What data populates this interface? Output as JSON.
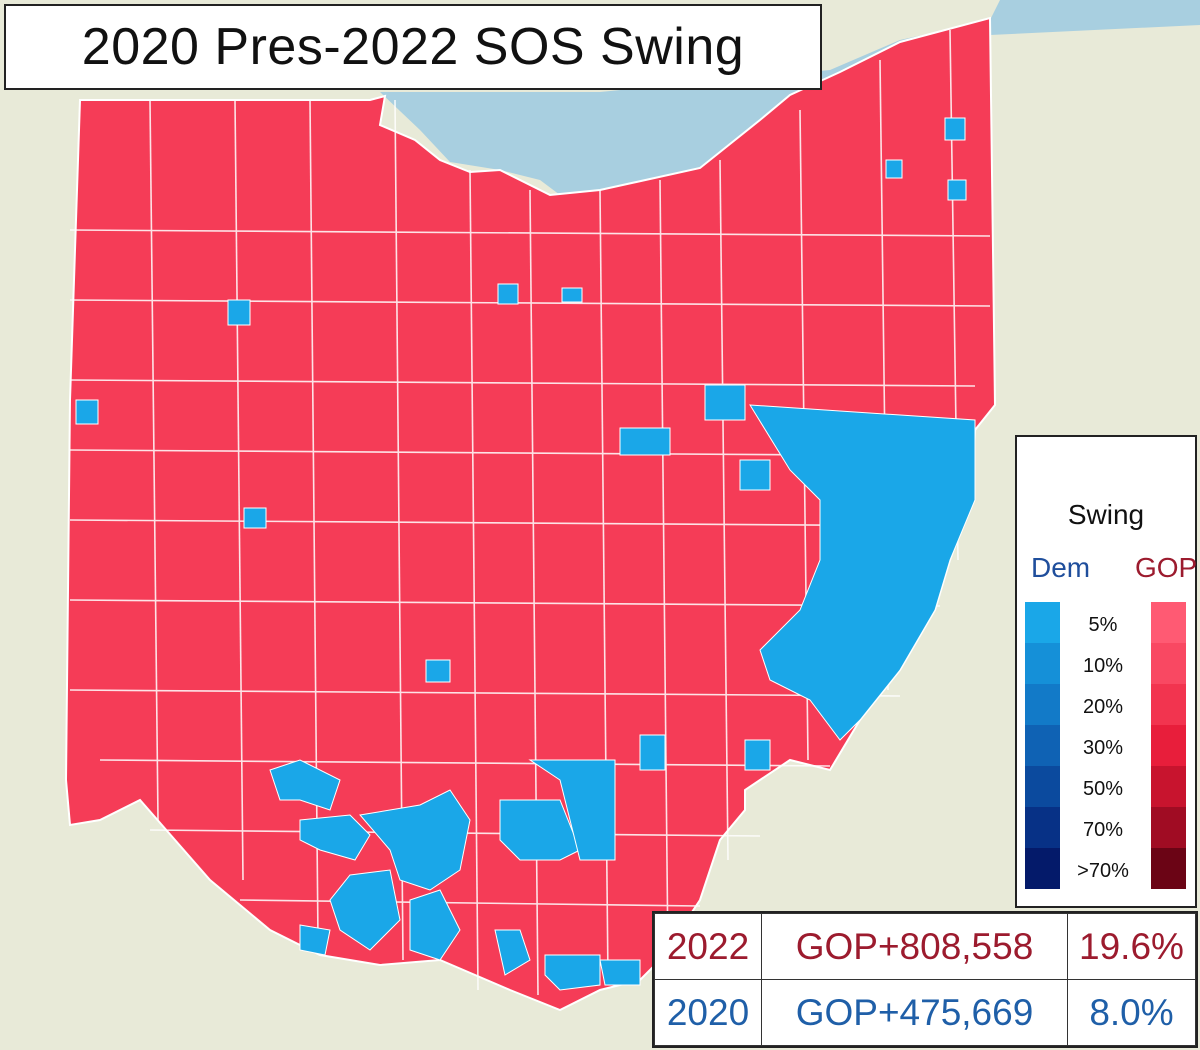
{
  "title": "2020 Pres-2022 SOS Swing",
  "legend": {
    "heading": "Swing",
    "dem_label": "Dem",
    "gop_label": "GOP",
    "ticks": [
      "5%",
      "10%",
      "20%",
      "30%",
      "50%",
      "70%",
      ">70%"
    ],
    "dem_colors": [
      "#1aa7e8",
      "#1590d8",
      "#127ac8",
      "#0f62b4",
      "#0b4a9e",
      "#073186",
      "#041a6a"
    ],
    "gop_colors": [
      "#ff5a73",
      "#f94862",
      "#f2344f",
      "#e81e3b",
      "#c8142e",
      "#a00c23",
      "#6b0415"
    ]
  },
  "results": [
    {
      "year": "2022",
      "margin": "GOP+808,558",
      "pct": "19.6%"
    },
    {
      "year": "2020",
      "margin": "GOP+475,669",
      "pct": "8.0%"
    }
  ],
  "colors": {
    "lake": "#a8cfe0",
    "land": "#e8ead8",
    "state_fill": "#f53c57",
    "dem_swing": "#1aa7e8",
    "county_border": "#ffffff",
    "text_gop": "#9c1b2e",
    "text_dem": "#1f5fa8"
  }
}
